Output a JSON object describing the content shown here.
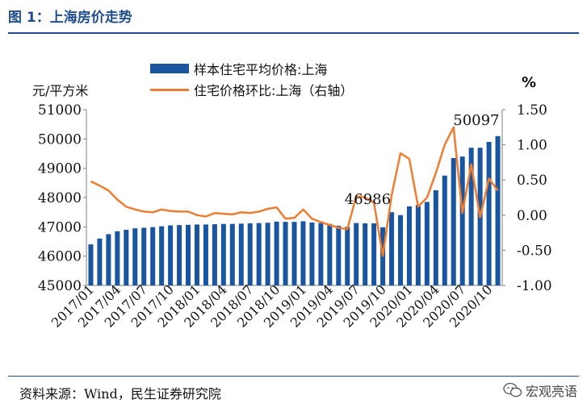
{
  "figure": {
    "title": "图 1：上海房价走势",
    "source": "资料来源：Wind，民生证券研究院",
    "watermark_text": "宏观亮语",
    "watermark_icon": "wechat-icon"
  },
  "colors": {
    "bar": "#1a56a0",
    "line": "#ed7d31",
    "rule": "#1f4e8c",
    "axis": "#7f7f7f"
  },
  "chart_data": {
    "type": "bar+line",
    "title": "",
    "left_unit": "元/平方米",
    "right_unit": "%",
    "ylim_left": [
      45000,
      51000
    ],
    "ylim_right": [
      -1.0,
      1.5
    ],
    "left_ticks": [
      "45000",
      "46000",
      "47000",
      "48000",
      "49000",
      "50000",
      "51000"
    ],
    "right_ticks": [
      "-1.00",
      "-0.50",
      "0.00",
      "0.50",
      "1.00",
      "1.50"
    ],
    "x_tick_labels": [
      "2017/01",
      "2017/04",
      "2017/07",
      "2017/10",
      "2018/01",
      "2018/04",
      "2018/07",
      "2018/10",
      "2019/01",
      "2019/04",
      "2019/07",
      "2019/10",
      "2020/01",
      "2020/04",
      "2020/07",
      "2020/10"
    ],
    "x_tick_label_step": 3,
    "grid": false,
    "legend_position": "top",
    "months": [
      "2017/01",
      "2017/02",
      "2017/03",
      "2017/04",
      "2017/05",
      "2017/06",
      "2017/07",
      "2017/08",
      "2017/09",
      "2017/10",
      "2017/11",
      "2017/12",
      "2018/01",
      "2018/02",
      "2018/03",
      "2018/04",
      "2018/05",
      "2018/06",
      "2018/07",
      "2018/08",
      "2018/09",
      "2018/10",
      "2018/11",
      "2018/12",
      "2019/01",
      "2019/02",
      "2019/03",
      "2019/04",
      "2019/05",
      "2019/06",
      "2019/07",
      "2019/08",
      "2019/09",
      "2019/10",
      "2019/11",
      "2019/12",
      "2020/01",
      "2020/02",
      "2020/03",
      "2020/04",
      "2020/05",
      "2020/06",
      "2020/07",
      "2020/08",
      "2020/09",
      "2020/10",
      "2020/11"
    ],
    "series": [
      {
        "name": "样本住宅平均价格:上海",
        "type": "bar",
        "axis": "left",
        "values": [
          46400,
          46600,
          46750,
          46850,
          46900,
          46950,
          46970,
          46990,
          47020,
          47050,
          47060,
          47070,
          47080,
          47080,
          47090,
          47100,
          47100,
          47110,
          47120,
          47130,
          47140,
          47180,
          47170,
          47170,
          47190,
          47150,
          47130,
          47100,
          47040,
          47000,
          47130,
          47120,
          47120,
          46986,
          47500,
          47400,
          47700,
          47750,
          47850,
          48250,
          48750,
          49350,
          49400,
          49700,
          49700,
          49900,
          50097
        ]
      },
      {
        "name": "住宅价格环比:上海（右轴）",
        "type": "line",
        "axis": "right",
        "values": [
          0.48,
          0.42,
          0.35,
          0.22,
          0.12,
          0.08,
          0.05,
          0.04,
          0.08,
          0.06,
          0.05,
          0.05,
          0.0,
          -0.02,
          0.03,
          0.02,
          0.01,
          0.04,
          0.03,
          0.05,
          0.09,
          0.11,
          -0.05,
          -0.04,
          0.08,
          -0.05,
          -0.1,
          -0.14,
          -0.18,
          -0.2,
          0.27,
          0.25,
          0.18,
          -0.58,
          0.28,
          0.88,
          0.8,
          0.12,
          0.25,
          0.6,
          1.0,
          1.25,
          0.03,
          0.72,
          -0.03,
          0.52,
          0.35
        ]
      }
    ],
    "annotations": [
      {
        "text": "46986",
        "index": 33
      },
      {
        "text": "50097",
        "index": 46
      }
    ]
  }
}
